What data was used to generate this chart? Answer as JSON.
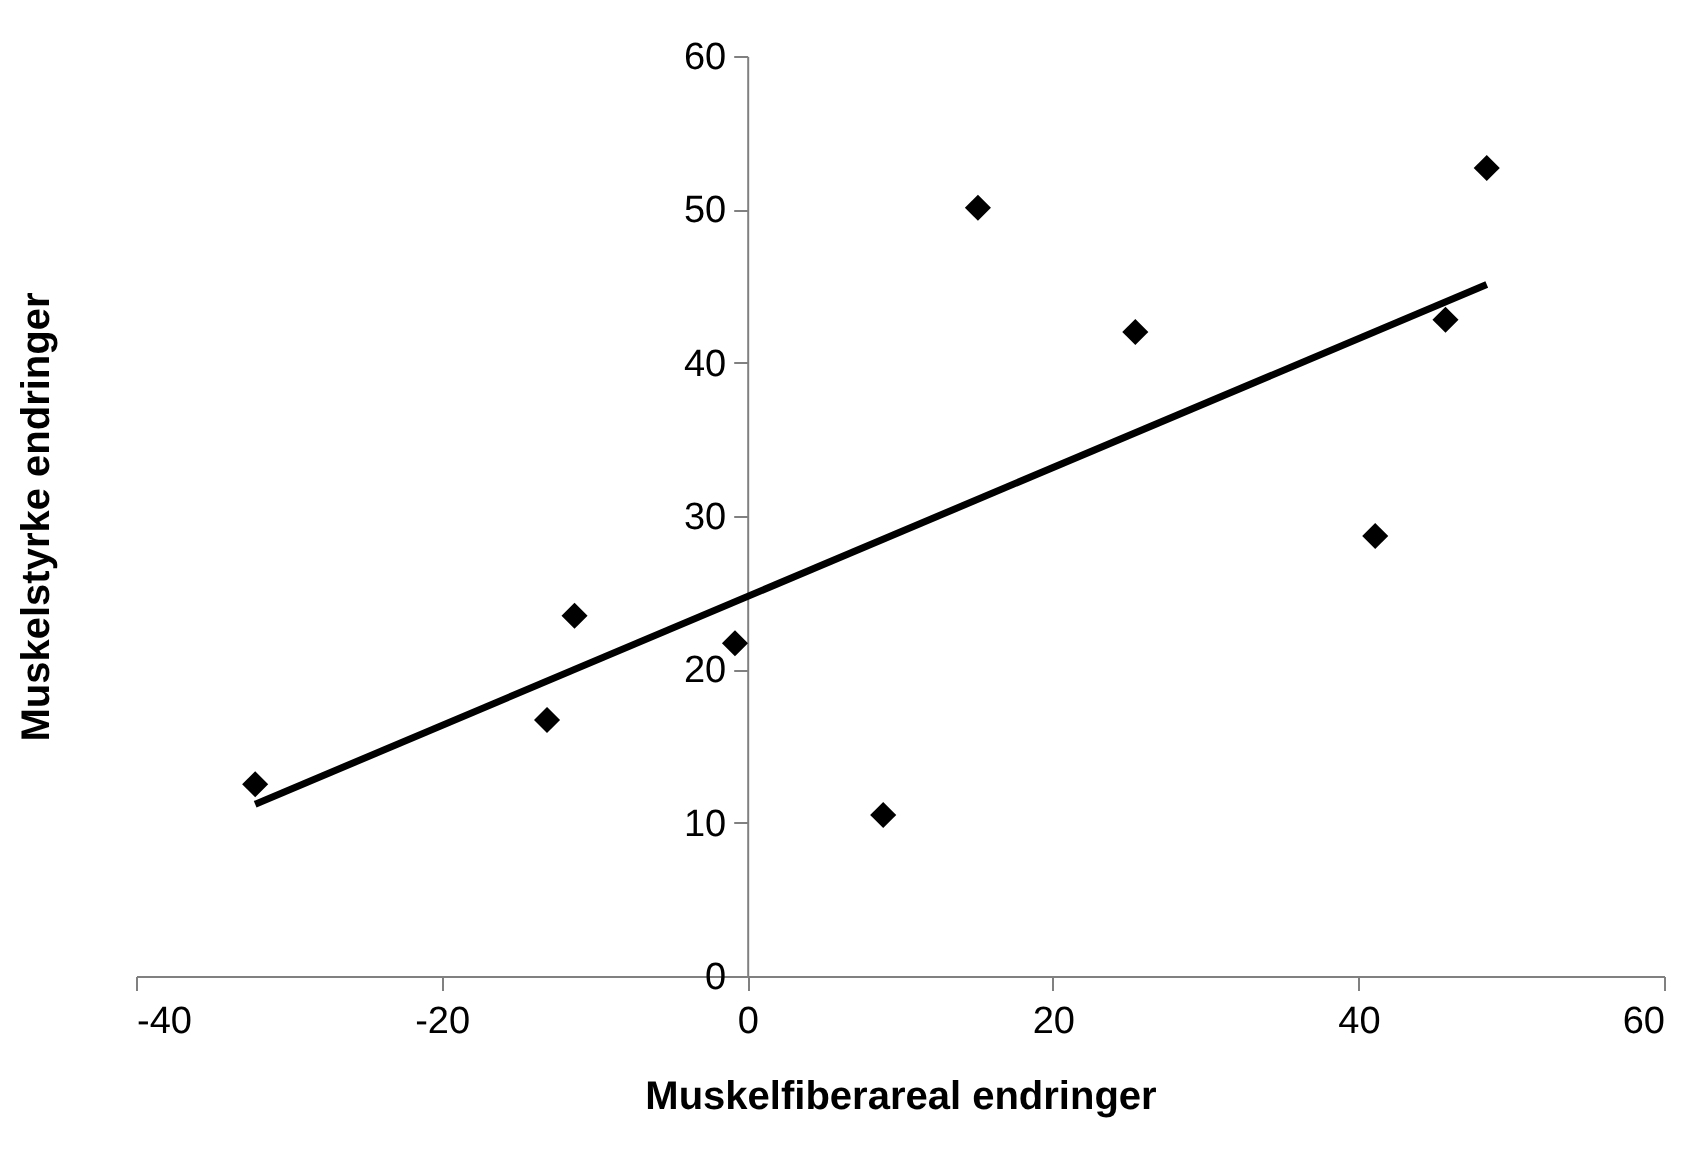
{
  "chart_data": {
    "type": "scatter",
    "xlabel": "Muskelfiberareal endringer",
    "ylabel": "Muskelstyrke endringer",
    "xlim": [
      -40,
      60
    ],
    "xticks": [
      -40,
      -20,
      0,
      20,
      40,
      60
    ],
    "ylim": [
      0,
      60
    ],
    "yticks": [
      0,
      10,
      20,
      30,
      40,
      50,
      60
    ],
    "grid": false,
    "series": [
      {
        "color": "#000000",
        "marker": "diamond",
        "x": [
          -32.2,
          -13.1,
          -11.3,
          -0.8,
          8.9,
          15.1,
          25.4,
          41.1,
          45.7,
          48.4
        ],
        "values": [
          12.5,
          16.7,
          23.5,
          21.7,
          10.5,
          50.1,
          42.0,
          28.7,
          42.8,
          52.7
        ]
      },
      {
        "type": "line",
        "color": "#000000",
        "marker": "none",
        "line_style": "solid",
        "x": [
          -32.2,
          48.4
        ],
        "values": [
          11.2,
          45.1
        ]
      }
    ]
  }
}
